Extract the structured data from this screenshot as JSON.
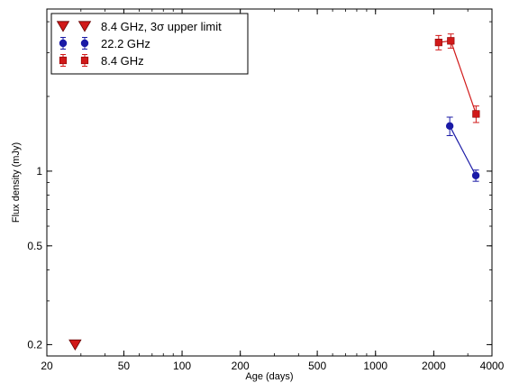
{
  "chart_data": {
    "type": "scatter",
    "xlabel": "Age (days)",
    "ylabel": "Flux density (mJy)",
    "xscale": "log",
    "yscale": "log",
    "xlim": [
      20,
      4000
    ],
    "ylim": [
      0.18,
      4.5
    ],
    "xticks": [
      {
        "value": 20,
        "label": "20"
      },
      {
        "value": 50,
        "label": "50"
      },
      {
        "value": 100,
        "label": "100"
      },
      {
        "value": 200,
        "label": "200"
      },
      {
        "value": 500,
        "label": "500"
      },
      {
        "value": 1000,
        "label": "1000"
      },
      {
        "value": 2000,
        "label": "2000"
      },
      {
        "value": 4000,
        "label": "4000"
      }
    ],
    "yticks": [
      {
        "value": 0.2,
        "label": "0.2"
      },
      {
        "value": 0.5,
        "label": "0.5"
      },
      {
        "value": 1,
        "label": "1"
      }
    ],
    "grid": false,
    "legend_position": "top-left",
    "series": [
      {
        "name": "8.4 GHz, 3σ upper limit",
        "marker": "triangle-down",
        "color": "#d11919",
        "connected": false,
        "points": [
          {
            "x": 28,
            "y": 0.2
          }
        ]
      },
      {
        "name": "22.2 GHz",
        "marker": "circle",
        "color": "#1a1aa6",
        "connected": true,
        "points": [
          {
            "x": 2420,
            "y": 1.52,
            "yerr": 0.13
          },
          {
            "x": 3300,
            "y": 0.96,
            "yerr": 0.05
          }
        ]
      },
      {
        "name": "8.4 GHz",
        "marker": "square",
        "color": "#d11919",
        "connected": true,
        "points": [
          {
            "x": 2120,
            "y": 3.3,
            "yerr": 0.22
          },
          {
            "x": 2450,
            "y": 3.35,
            "yerr": 0.22
          },
          {
            "x": 3310,
            "y": 1.7,
            "yerr": 0.13
          }
        ]
      }
    ]
  }
}
